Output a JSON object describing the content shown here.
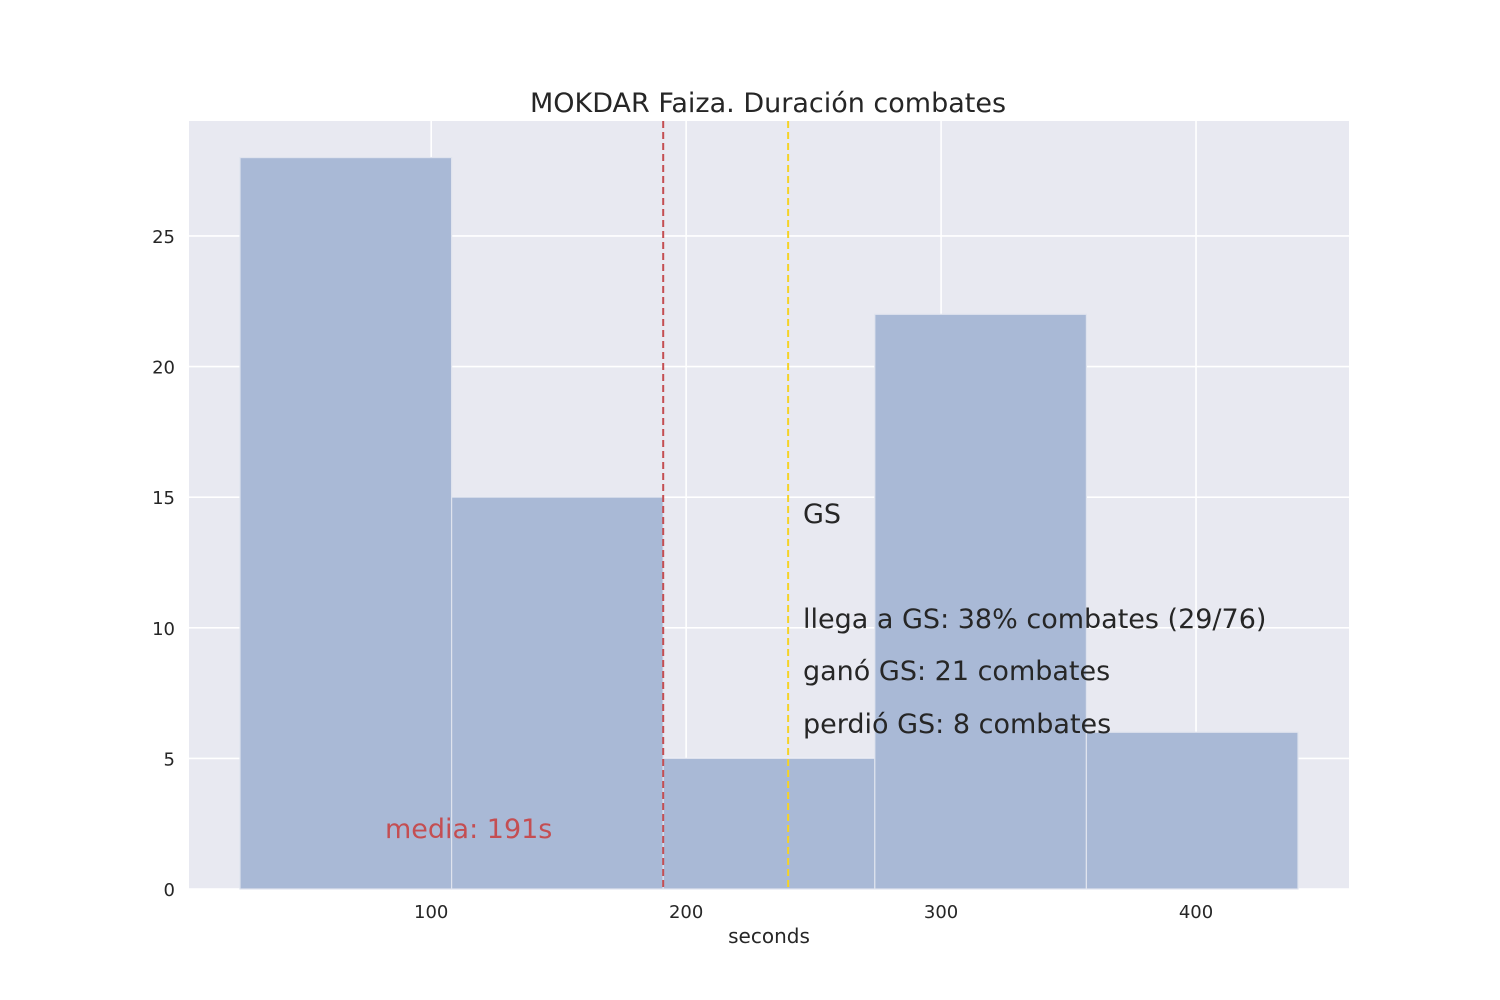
{
  "chart_data": {
    "type": "bar",
    "subtype": "histogram",
    "title": "MOKDAR Faiza. Duración combates",
    "xlabel": "seconds",
    "ylabel": "",
    "xlim": [
      5,
      460
    ],
    "ylim": [
      0,
      29.4
    ],
    "xticks": [
      100,
      200,
      300,
      400
    ],
    "yticks": [
      0,
      5,
      10,
      15,
      20,
      25
    ],
    "grid": true,
    "bar_color": "#a9b9d6",
    "plot_background": "#e8e9f1",
    "bins": [
      {
        "x0": 25,
        "x1": 108,
        "count": 28
      },
      {
        "x0": 108,
        "x1": 191,
        "count": 15
      },
      {
        "x0": 191,
        "x1": 274,
        "count": 5
      },
      {
        "x0": 274,
        "x1": 357,
        "count": 22
      },
      {
        "x0": 357,
        "x1": 440,
        "count": 6
      }
    ],
    "reference_lines": [
      {
        "name": "mean",
        "x": 191,
        "color": "#c44e52",
        "style": "dashed"
      },
      {
        "name": "gs",
        "x": 240,
        "color": "#f5d327",
        "style": "dashed"
      }
    ],
    "annotations": {
      "mean_label": "media: 191s",
      "mean_label_color": "#c44e52",
      "gs_title": "GS",
      "gs_reach": "llega a GS: 38% combates (29/76)",
      "gs_won": "ganó GS: 21 combates",
      "gs_lost": "perdió GS: 8 combates"
    }
  }
}
